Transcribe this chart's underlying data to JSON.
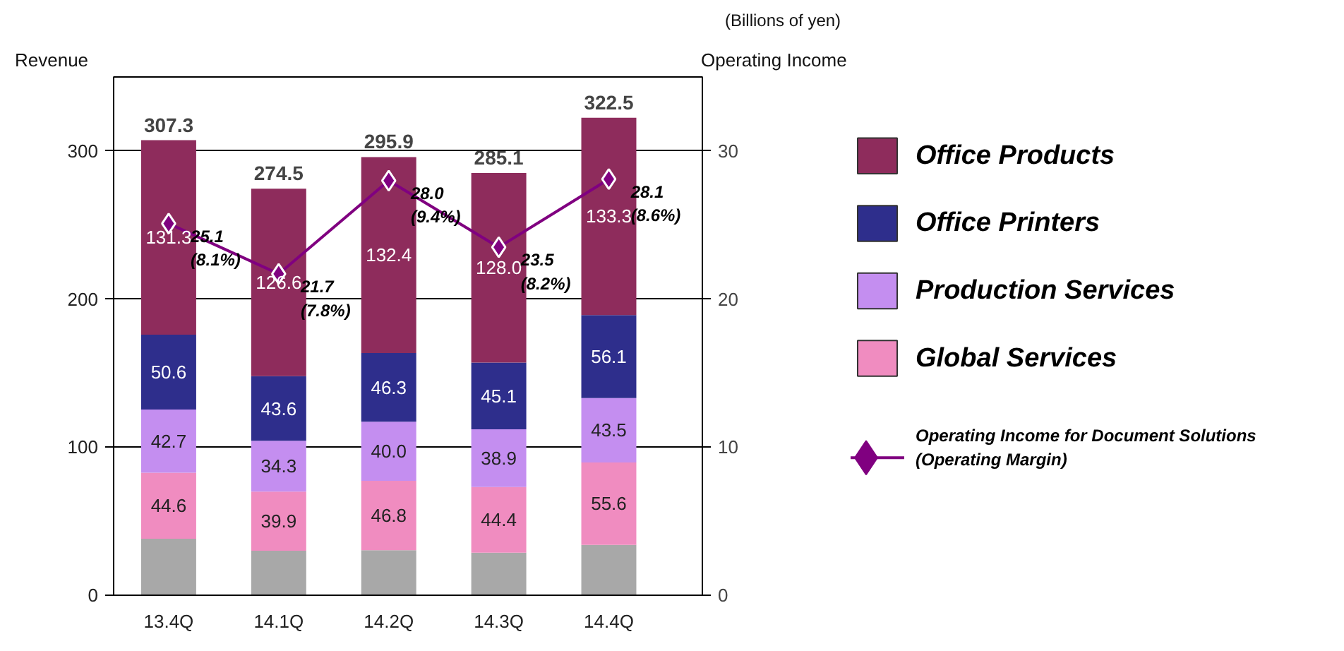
{
  "chart_data": {
    "type": "bar",
    "stacked": true,
    "subtitle": "(Billions of yen)",
    "ylabel": "Revenue",
    "y2label": "Operating Income",
    "categories": [
      "13.4Q",
      "14.1Q",
      "14.2Q",
      "14.3Q",
      "14.4Q"
    ],
    "series": [
      {
        "color": "#a8a8a8",
        "values": [
          38.1,
          30.1,
          30.4,
          28.7,
          34.0
        ]
      },
      {
        "name": "Global Services",
        "color": "#f08cc0",
        "values": [
          44.6,
          39.9,
          46.8,
          44.4,
          55.6
        ],
        "value_labels": [
          "44.6",
          "39.9",
          "46.8",
          "44.4",
          "55.6"
        ]
      },
      {
        "name": "Production Services",
        "color": "#c48ef0",
        "values": [
          42.7,
          34.3,
          40.0,
          38.9,
          43.5
        ],
        "value_labels": [
          "42.7",
          "34.3",
          "40.0",
          "38.9",
          "43.5"
        ]
      },
      {
        "name": "Office Printers",
        "color": "#2e2e8c",
        "values": [
          50.6,
          43.6,
          46.3,
          45.1,
          56.1
        ],
        "value_labels": [
          "50.6",
          "43.6",
          "46.3",
          "45.1",
          "56.1"
        ]
      },
      {
        "name": "Office Products",
        "color": "#8e2c5c",
        "values": [
          131.3,
          126.6,
          132.4,
          128.0,
          133.3
        ],
        "value_labels": [
          "131.3",
          "126.6",
          "132.4",
          "128.0",
          "133.3"
        ]
      },
      {
        "name": "Operating Income for Document Solutions\n(Operating Margin)",
        "type": "line",
        "axis": "y2",
        "color": "#800080",
        "marker": "diamond",
        "values": [
          25.1,
          21.7,
          28.0,
          23.5,
          28.1
        ],
        "value_labels": [
          "25.1\n(8.1%)",
          "21.7\n(7.8%)",
          "28.0\n(9.4%)",
          "23.5\n(8.2%)",
          "28.1\n(8.6%)"
        ]
      }
    ],
    "totals": [
      "307.3",
      "274.5",
      "295.9",
      "285.1",
      "322.5"
    ],
    "ylim": [
      0,
      350
    ],
    "yticks": [
      0,
      100,
      200,
      300
    ],
    "y2lim": [
      0,
      35
    ],
    "y2ticks": [
      0,
      10,
      20,
      30
    ],
    "grid": "y",
    "legend": "right"
  }
}
